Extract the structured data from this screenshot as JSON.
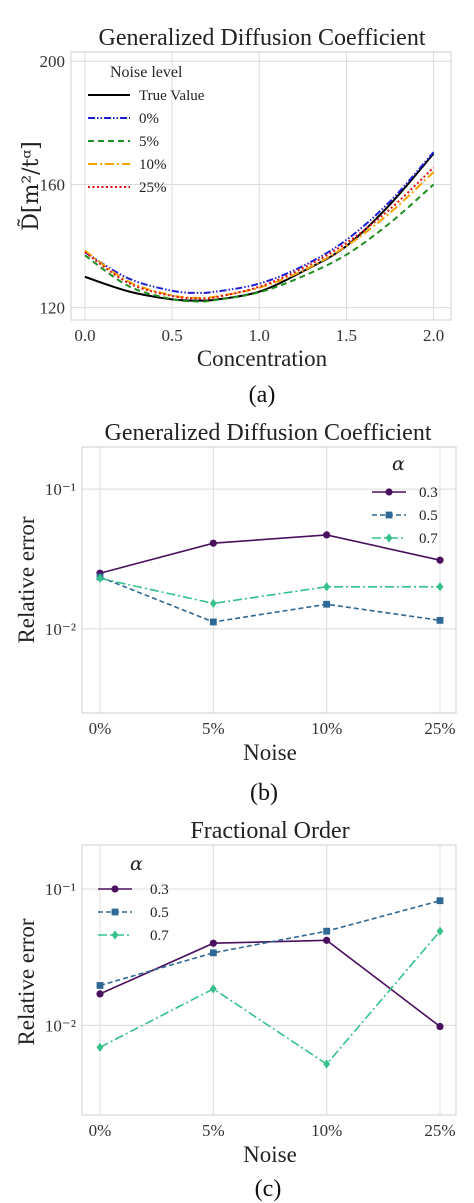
{
  "panels": [
    {
      "caption": "(a)",
      "chart": {
        "type": "line",
        "title": "Generalized Diffusion Coefficient",
        "xlabel": "Concentration",
        "ylabel_math": "D̃[m²/tᵅ]",
        "xlim": [
          -0.08,
          2.1
        ],
        "ylim": [
          116,
          203
        ],
        "xticks": [
          {
            "v": 0.0,
            "label": "0.0"
          },
          {
            "v": 0.5,
            "label": "0.5"
          },
          {
            "v": 1.0,
            "label": "1.0"
          },
          {
            "v": 1.5,
            "label": "1.5"
          },
          {
            "v": 2.0,
            "label": "2.0"
          }
        ],
        "yticks": [
          {
            "v": 120,
            "label": "120"
          },
          {
            "v": 160,
            "label": "160"
          },
          {
            "v": 200,
            "label": "200"
          }
        ],
        "legend_title": "Noise level",
        "legend_position": "upper-left",
        "grid": true
      }
    },
    {
      "caption": "(b)",
      "chart": {
        "type": "line",
        "title": "Generalized Diffusion Coefficient",
        "xlabel": "Noise",
        "ylabel": "Relative error",
        "yscale": "log",
        "ylim": [
          0.0025,
          0.2
        ],
        "categories": [
          "0%",
          "5%",
          "10%",
          "25%"
        ],
        "yticks": [
          {
            "v": 0.1,
            "label": "10⁻¹"
          },
          {
            "v": 0.01,
            "label": "10⁻²"
          }
        ],
        "legend_title": "α",
        "legend_position": "upper-right",
        "grid": true
      }
    },
    {
      "caption": "(c)",
      "chart": {
        "type": "line",
        "title": "Fractional Order",
        "xlabel": "Noise",
        "ylabel": "Relative error",
        "yscale": "log",
        "ylim": [
          0.0022,
          0.21
        ],
        "categories": [
          "0%",
          "5%",
          "10%",
          "25%"
        ],
        "yticks": [
          {
            "v": 0.1,
            "label": "10⁻¹"
          },
          {
            "v": 0.01,
            "label": "10⁻²"
          }
        ],
        "legend_title": "α",
        "legend_position": "upper-left",
        "grid": true
      }
    }
  ],
  "chart_data": [
    {
      "type": "line",
      "title": "Generalized Diffusion Coefficient",
      "xlabel": "Concentration",
      "ylabel": "D̃[m²/tᵅ]",
      "xlim": [
        -0.08,
        2.1
      ],
      "ylim": [
        116,
        203
      ],
      "legend_title": "Noise level",
      "series": [
        {
          "name": "True Value",
          "color": "#000000",
          "dash": "",
          "x": [
            0,
            0.25,
            0.5,
            0.65,
            0.75,
            1.0,
            1.25,
            1.5,
            1.75,
            2.0
          ],
          "values": [
            130,
            125.3,
            122.7,
            122.3,
            122.6,
            125.2,
            131.8,
            140.0,
            153.5,
            170.0
          ]
        },
        {
          "name": "0%",
          "color": "#1f1fd6",
          "dash": "7,2,1.5,2,1.5,2",
          "x": [
            0,
            0.25,
            0.5,
            0.65,
            0.75,
            1.0,
            1.25,
            1.5,
            1.75,
            2.0
          ],
          "values": [
            138,
            129.5,
            125.5,
            124.8,
            125.2,
            127.8,
            133.5,
            142.0,
            154.5,
            170.5
          ]
        },
        {
          "name": "5%",
          "color": "#1f8f1f",
          "dash": "6,4",
          "x": [
            0,
            0.25,
            0.5,
            0.65,
            0.75,
            1.0,
            1.25,
            1.5,
            1.75,
            2.0
          ],
          "values": [
            137,
            127.0,
            122.8,
            122.0,
            122.5,
            125.0,
            130.2,
            137.2,
            147.5,
            160.0
          ]
        },
        {
          "name": "10%",
          "color": "#f5a300",
          "dash": "9,3,2,3",
          "x": [
            0,
            0.25,
            0.5,
            0.65,
            0.75,
            1.0,
            1.25,
            1.5,
            1.75,
            2.0
          ],
          "values": [
            138.5,
            128.5,
            124.0,
            123.2,
            123.6,
            126.5,
            132.0,
            140.0,
            150.8,
            164.0
          ]
        },
        {
          "name": "25%",
          "color": "#e01010",
          "dash": "2,2.5",
          "x": [
            0,
            0.25,
            0.5,
            0.65,
            0.75,
            1.0,
            1.25,
            1.5,
            1.75,
            2.0
          ],
          "values": [
            138,
            128.0,
            123.8,
            123.0,
            123.4,
            126.8,
            132.8,
            141.0,
            152.0,
            165.5
          ]
        }
      ]
    },
    {
      "type": "line",
      "title": "Generalized Diffusion Coefficient",
      "xlabel": "Noise",
      "ylabel": "Relative error",
      "yscale": "log",
      "ylim": [
        0.0025,
        0.2
      ],
      "categories": [
        "0%",
        "5%",
        "10%",
        "25%"
      ],
      "legend_title": "α",
      "series": [
        {
          "name": "0.3",
          "color": "#4a0f5e",
          "marker": "circle",
          "dash": "",
          "values": [
            0.025,
            0.041,
            0.047,
            0.031
          ]
        },
        {
          "name": "0.5",
          "color": "#2f6894",
          "marker": "square",
          "dash": "5,3",
          "values": [
            0.0235,
            0.0112,
            0.015,
            0.0115
          ]
        },
        {
          "name": "0.7",
          "color": "#35c18a",
          "marker": "diamond",
          "dash": "9,3,2,3",
          "values": [
            0.023,
            0.0152,
            0.02,
            0.02
          ]
        }
      ]
    },
    {
      "type": "line",
      "title": "Fractional Order",
      "xlabel": "Noise",
      "ylabel": "Relative error",
      "yscale": "log",
      "ylim": [
        0.0022,
        0.21
      ],
      "categories": [
        "0%",
        "5%",
        "10%",
        "25%"
      ],
      "legend_title": "α",
      "series": [
        {
          "name": "0.3",
          "color": "#4a0f5e",
          "marker": "circle",
          "dash": "",
          "values": [
            0.017,
            0.04,
            0.042,
            0.0098
          ]
        },
        {
          "name": "0.5",
          "color": "#2f6894",
          "marker": "square",
          "dash": "5,3",
          "values": [
            0.0196,
            0.034,
            0.049,
            0.082
          ]
        },
        {
          "name": "0.7",
          "color": "#35c18a",
          "marker": "diamond",
          "dash": "9,3,2,3",
          "values": [
            0.0069,
            0.0185,
            0.0052,
            0.049
          ]
        }
      ]
    }
  ]
}
